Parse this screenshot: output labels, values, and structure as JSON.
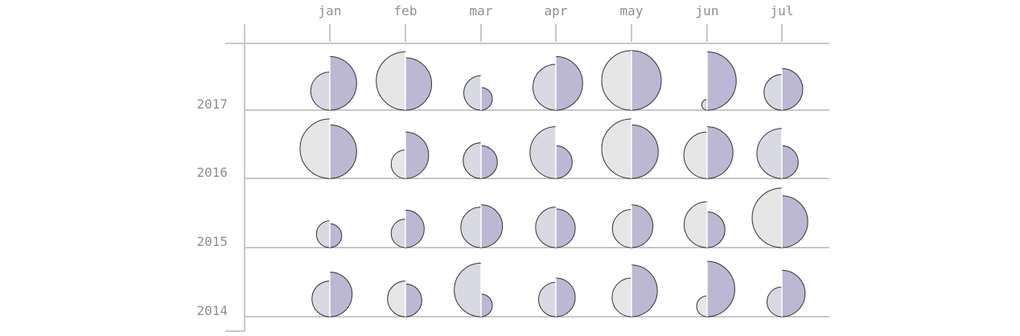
{
  "chart_data": {
    "type": "split-circle-grid",
    "months": [
      "jan",
      "feb",
      "mar",
      "apr",
      "may",
      "jun",
      "jul"
    ],
    "years": [
      "2017",
      "2016",
      "2015",
      "2014"
    ],
    "colors": {
      "left_fill": "#d9d9e3",
      "left_fill_light": "#e6e6e6",
      "right_fill": "#bcb7d3",
      "stroke": "#333333",
      "grid": "#c8c8c8",
      "label": "#8f8f8f"
    },
    "rows": [
      {
        "year": "2017",
        "cells": [
          {
            "left": 0.64,
            "right": 0.9
          },
          {
            "left": 0.98,
            "right": 0.88
          },
          {
            "left": 0.58,
            "right": 0.38
          },
          {
            "left": 0.77,
            "right": 0.9
          },
          {
            "left": 1.0,
            "right": 1.0
          },
          {
            "left": 0.18,
            "right": 0.98
          },
          {
            "left": 0.6,
            "right": 0.7
          }
        ]
      },
      {
        "year": "2016",
        "cells": [
          {
            "left": 1.0,
            "right": 0.9
          },
          {
            "left": 0.48,
            "right": 0.78
          },
          {
            "left": 0.6,
            "right": 0.55
          },
          {
            "left": 0.87,
            "right": 0.55
          },
          {
            "left": 1.0,
            "right": 0.9
          },
          {
            "left": 0.78,
            "right": 0.87
          },
          {
            "left": 0.84,
            "right": 0.55
          }
        ]
      },
      {
        "year": "2015",
        "cells": [
          {
            "left": 0.45,
            "right": 0.4
          },
          {
            "left": 0.48,
            "right": 0.63
          },
          {
            "left": 0.68,
            "right": 0.72
          },
          {
            "left": 0.68,
            "right": 0.65
          },
          {
            "left": 0.64,
            "right": 0.72
          },
          {
            "left": 0.77,
            "right": 0.6
          },
          {
            "left": 1.0,
            "right": 0.87
          }
        ]
      },
      {
        "year": "2014",
        "cells": [
          {
            "left": 0.6,
            "right": 0.75
          },
          {
            "left": 0.6,
            "right": 0.55
          },
          {
            "left": 0.9,
            "right": 0.38
          },
          {
            "left": 0.58,
            "right": 0.65
          },
          {
            "left": 0.65,
            "right": 0.87
          },
          {
            "left": 0.35,
            "right": 0.93
          },
          {
            "left": 0.5,
            "right": 0.78
          }
        ]
      }
    ]
  }
}
